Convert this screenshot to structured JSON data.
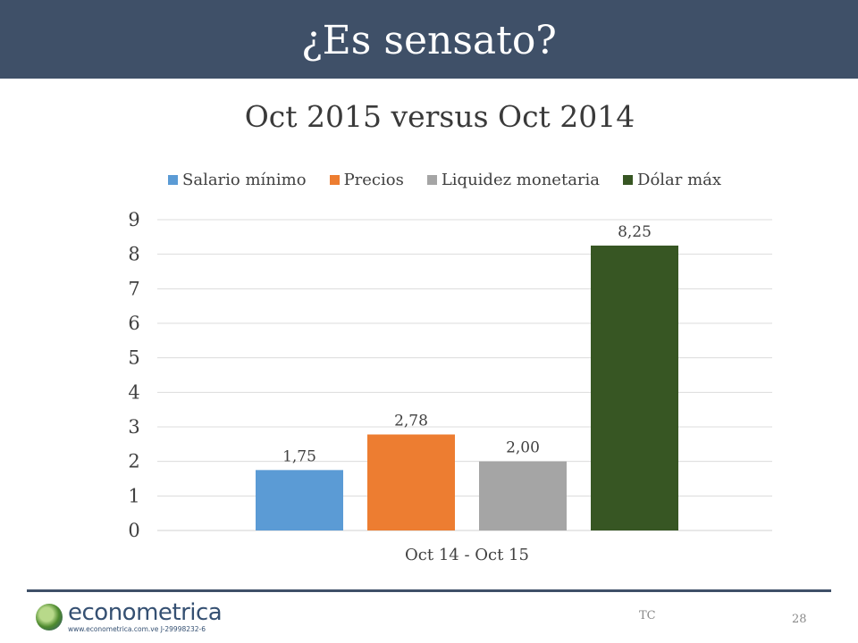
{
  "slide": {
    "title": "¿Es sensato?",
    "footer_text": "TC",
    "page_number": "28",
    "colors": {
      "header": "#3f5068",
      "footer_line": "#3f5068"
    }
  },
  "logo": {
    "name": "econometrica",
    "subtitle": "www.econometrica.com.ve  J-29998232-6"
  },
  "chart_data": {
    "type": "bar",
    "title": "Oct 2015 versus Oct 2014",
    "categories": [
      "Oct 14 - Oct 15"
    ],
    "series": [
      {
        "name": "Salario mínimo",
        "values": [
          1.75
        ],
        "label": "1,75",
        "color": "#5b9bd5"
      },
      {
        "name": "Precios",
        "values": [
          2.78
        ],
        "label": "2,78",
        "color": "#ed7d31"
      },
      {
        "name": "Liquidez monetaria",
        "values": [
          2.0
        ],
        "label": "2,00",
        "color": "#a5a5a5"
      },
      {
        "name": "Dólar máx",
        "values": [
          8.25
        ],
        "label": "8,25",
        "color": "#375623"
      }
    ],
    "yticks": [
      "0",
      "1",
      "2",
      "3",
      "4",
      "5",
      "6",
      "7",
      "8",
      "9"
    ],
    "ylim": [
      0,
      9
    ],
    "grid": true,
    "legend": "top"
  }
}
